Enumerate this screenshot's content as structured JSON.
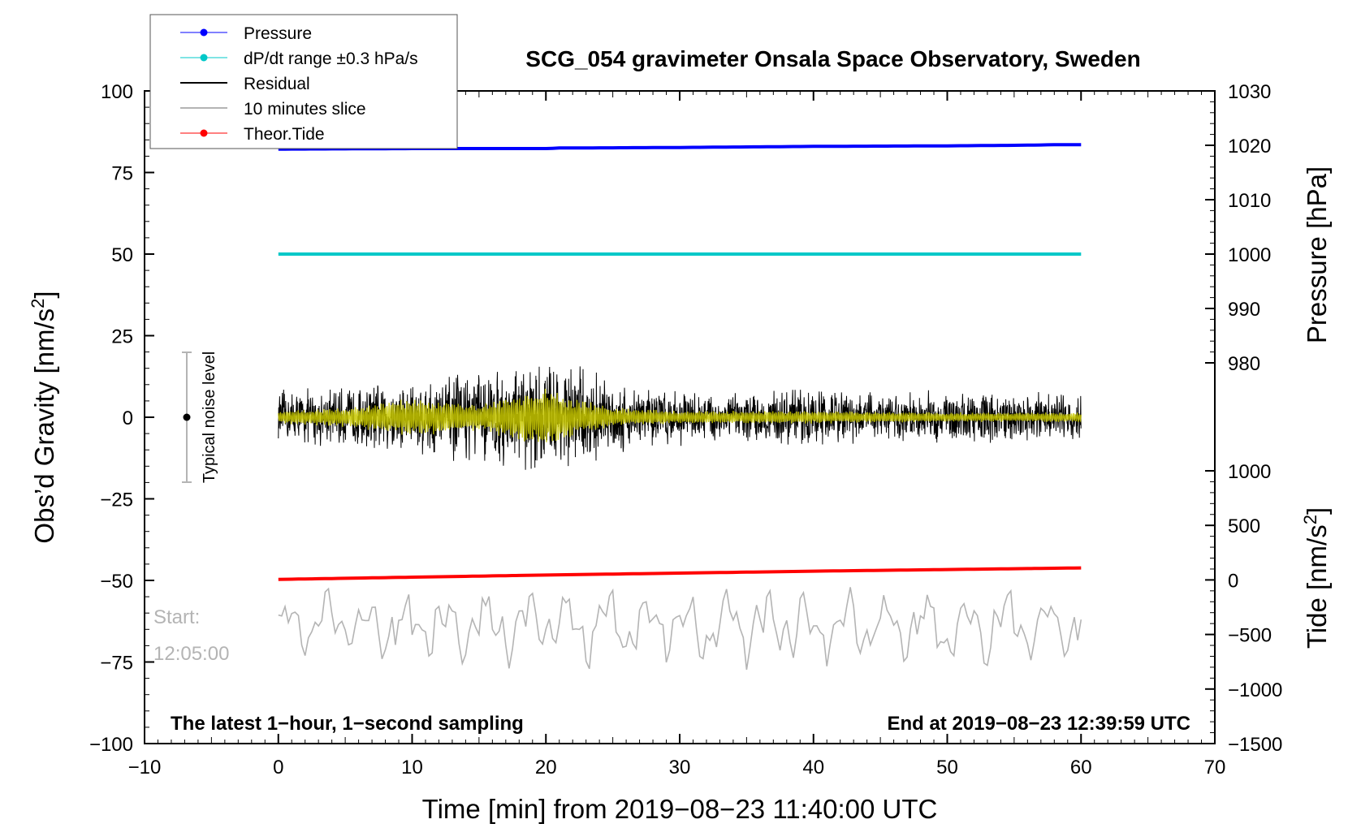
{
  "chart_data": {
    "type": "line",
    "title": "SCG_054 gravimeter Onsala Space Observatory, Sweden",
    "xlabel": "Time [min] from 2019−08−23 11:40:00 UTC",
    "ylabel_left": "Obs’d Gravity [nm/s",
    "ylabel_left_sup": "2",
    "ylabel_left_end": "]",
    "ylabel_right_pressure": "Pressure [hPa]",
    "ylabel_right_tide": "Tide [nm/s",
    "ylabel_right_tide_sup": "2",
    "ylabel_right_tide_end": "]",
    "xlim": [
      -10,
      70
    ],
    "ylim_left": [
      -100,
      100
    ],
    "pressure_axis_range": [
      980,
      1030
    ],
    "tide_axis_range": [
      -1500,
      1000
    ],
    "x_ticks": [
      "−10",
      "0",
      "10",
      "20",
      "30",
      "40",
      "50",
      "60",
      "70"
    ],
    "y_left_ticks": [
      "100",
      "75",
      "50",
      "25",
      "0",
      "−25",
      "−50",
      "−75",
      "−100"
    ],
    "y_pressure_ticks": [
      "1030",
      "1020",
      "1010",
      "1000",
      "990",
      "980"
    ],
    "y_tide_ticks": [
      "1000",
      "500",
      "0",
      "−500",
      "−1000",
      "−1500"
    ],
    "legend_position": "top-left",
    "grid": false,
    "series": [
      {
        "name": "Pressure",
        "color": "#0000ff",
        "marker": "dot",
        "axis": "pressure",
        "x": [
          0,
          10,
          20,
          21,
          30,
          40,
          50,
          55,
          58,
          60
        ],
        "values": [
          1019.3,
          1019.4,
          1019.4,
          1019.5,
          1019.6,
          1019.8,
          1019.9,
          1020.0,
          1020.1,
          1020.1
        ]
      },
      {
        "name": "dP/dt range ±0.3 hPa/s",
        "color": "#00c8c8",
        "marker": "dot",
        "axis": "left",
        "x": [
          0,
          60
        ],
        "values": [
          50,
          50
        ]
      },
      {
        "name": "Residual",
        "color": "#000000",
        "marker": "line",
        "axis": "left",
        "x": [
          0,
          5,
          10,
          15,
          20,
          22,
          25,
          30,
          35,
          40,
          45,
          50,
          55,
          60
        ],
        "envelope": [
          9,
          10,
          13,
          15,
          19,
          18,
          12,
          9,
          8,
          10,
          8,
          9,
          8,
          8
        ]
      },
      {
        "name": "10 minutes slice",
        "color": "#b4b4b4",
        "marker": "line",
        "axis": "left",
        "x_range": [
          0,
          60
        ],
        "center": -64,
        "amplitude": 10
      },
      {
        "name": "Theor.Tide",
        "color": "#ff0000",
        "marker": "dot",
        "axis": "tide",
        "x": [
          0,
          20,
          40,
          60
        ],
        "values": [
          5,
          45,
          80,
          110
        ]
      },
      {
        "name": "",
        "color": "#c8c800",
        "marker": "line",
        "axis": "left",
        "x": [
          0,
          5,
          10,
          15,
          18,
          20,
          22,
          25,
          30,
          40,
          50,
          60
        ],
        "envelope": [
          2,
          3,
          6,
          4,
          8,
          9,
          6,
          3,
          2,
          2,
          1.5,
          1.5
        ]
      }
    ],
    "noise_bar": {
      "label": "Typical noise level",
      "x": -7,
      "center": 0,
      "half_range": 20
    },
    "annotations": {
      "bottom_left": "The latest 1−hour, 1−second sampling",
      "bottom_right": "End at 2019−08−23 12:39:59 UTC",
      "start_label": "Start:",
      "start_time": "12:05:00"
    }
  }
}
